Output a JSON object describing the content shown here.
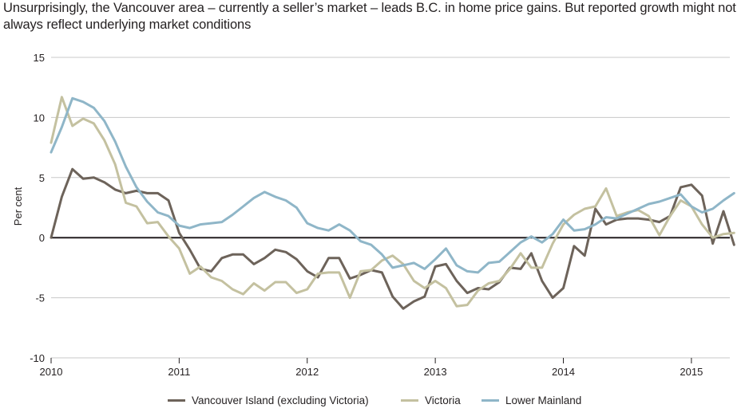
{
  "title": "Unsurprisingly, the Vancouver area – currently a seller’s market – leads B.C. in home price gains. But reported growth might not always reflect underlying market conditions",
  "colors": {
    "vancouver_island": "#6d635a",
    "victoria": "#c4c1a0",
    "lower_mainland": "#8fb6c8",
    "grid": "#c8c8c8",
    "zero_line": "#231f20"
  },
  "chart_data": {
    "type": "line",
    "title": "Unsurprisingly, the Vancouver area – currently a seller’s market – leads B.C. in home price gains. But reported growth might not always reflect underlying market conditions",
    "xlabel": "",
    "ylabel": "Per cent",
    "ylim": [
      -10,
      15
    ],
    "yticks": [
      15,
      10,
      5,
      0,
      -5,
      -10
    ],
    "ytick_labels": [
      "15",
      "10",
      "5",
      "0",
      "-5",
      "-10"
    ],
    "xlim": [
      2010,
      2015.3
    ],
    "xticks": [
      2010,
      2011,
      2012,
      2013,
      2014,
      2015
    ],
    "xtick_labels": [
      "2010",
      "2011",
      "2012",
      "2013",
      "2014",
      "2015"
    ],
    "grid": true,
    "legend_position": "bottom",
    "x_start": 2010.0,
    "x_step": 0.083333,
    "series": [
      {
        "name": "Vancouver Island (excluding Victoria)",
        "color_key": "vancouver_island",
        "values": [
          0.0,
          3.4,
          5.7,
          4.9,
          5.0,
          4.6,
          4.0,
          3.7,
          3.9,
          3.7,
          3.7,
          3.1,
          0.4,
          -1.0,
          -2.6,
          -2.8,
          -1.7,
          -1.4,
          -1.4,
          -2.2,
          -1.7,
          -1.0,
          -1.2,
          -1.8,
          -2.8,
          -3.3,
          -1.7,
          -1.7,
          -3.4,
          -3.1,
          -2.7,
          -2.9,
          -4.9,
          -5.9,
          -5.3,
          -4.9,
          -2.4,
          -2.2,
          -3.6,
          -4.6,
          -4.2,
          -4.3,
          -3.7,
          -2.5,
          -2.6,
          -1.3,
          -3.6,
          -5.0,
          -4.2,
          -0.7,
          -1.5,
          2.4,
          1.1,
          1.5,
          1.6,
          1.6,
          1.5,
          1.3,
          1.8,
          4.2,
          4.4,
          3.5,
          -0.5,
          2.2,
          -0.6
        ]
      },
      {
        "name": "Victoria",
        "color_key": "victoria",
        "values": [
          7.9,
          11.7,
          9.3,
          9.9,
          9.5,
          8.1,
          6.1,
          2.9,
          2.6,
          1.2,
          1.3,
          0.1,
          -0.9,
          -3.0,
          -2.4,
          -3.3,
          -3.6,
          -4.3,
          -4.7,
          -3.8,
          -4.4,
          -3.7,
          -3.7,
          -4.6,
          -4.3,
          -3.0,
          -2.9,
          -2.9,
          -5.0,
          -2.8,
          -2.7,
          -1.9,
          -1.5,
          -2.2,
          -3.6,
          -4.2,
          -3.6,
          -4.2,
          -5.7,
          -5.6,
          -4.4,
          -3.8,
          -3.6,
          -2.6,
          -1.3,
          -2.5,
          -2.5,
          -0.5,
          1.1,
          1.9,
          2.4,
          2.6,
          4.1,
          1.8,
          2.1,
          2.3,
          1.8,
          0.2,
          1.8,
          3.1,
          2.6,
          1.1,
          0.0,
          0.3,
          0.4
        ]
      },
      {
        "name": "Lower Mainland",
        "color_key": "lower_mainland",
        "values": [
          7.1,
          9.2,
          11.6,
          11.3,
          10.8,
          9.7,
          8.0,
          5.9,
          4.2,
          3.0,
          2.1,
          1.8,
          1.0,
          0.8,
          1.1,
          1.2,
          1.3,
          1.9,
          2.6,
          3.3,
          3.8,
          3.4,
          3.1,
          2.5,
          1.2,
          0.8,
          0.6,
          1.1,
          0.6,
          -0.3,
          -0.6,
          -1.4,
          -2.5,
          -2.3,
          -2.1,
          -2.6,
          -1.8,
          -0.9,
          -2.3,
          -2.8,
          -2.9,
          -2.1,
          -2.0,
          -1.2,
          -0.4,
          0.1,
          -0.4,
          0.3,
          1.5,
          0.6,
          0.7,
          1.1,
          1.7,
          1.6,
          2.0,
          2.4,
          2.8,
          3.0,
          3.3,
          3.6,
          2.6,
          2.1,
          2.4,
          3.1,
          3.7
        ]
      }
    ]
  }
}
